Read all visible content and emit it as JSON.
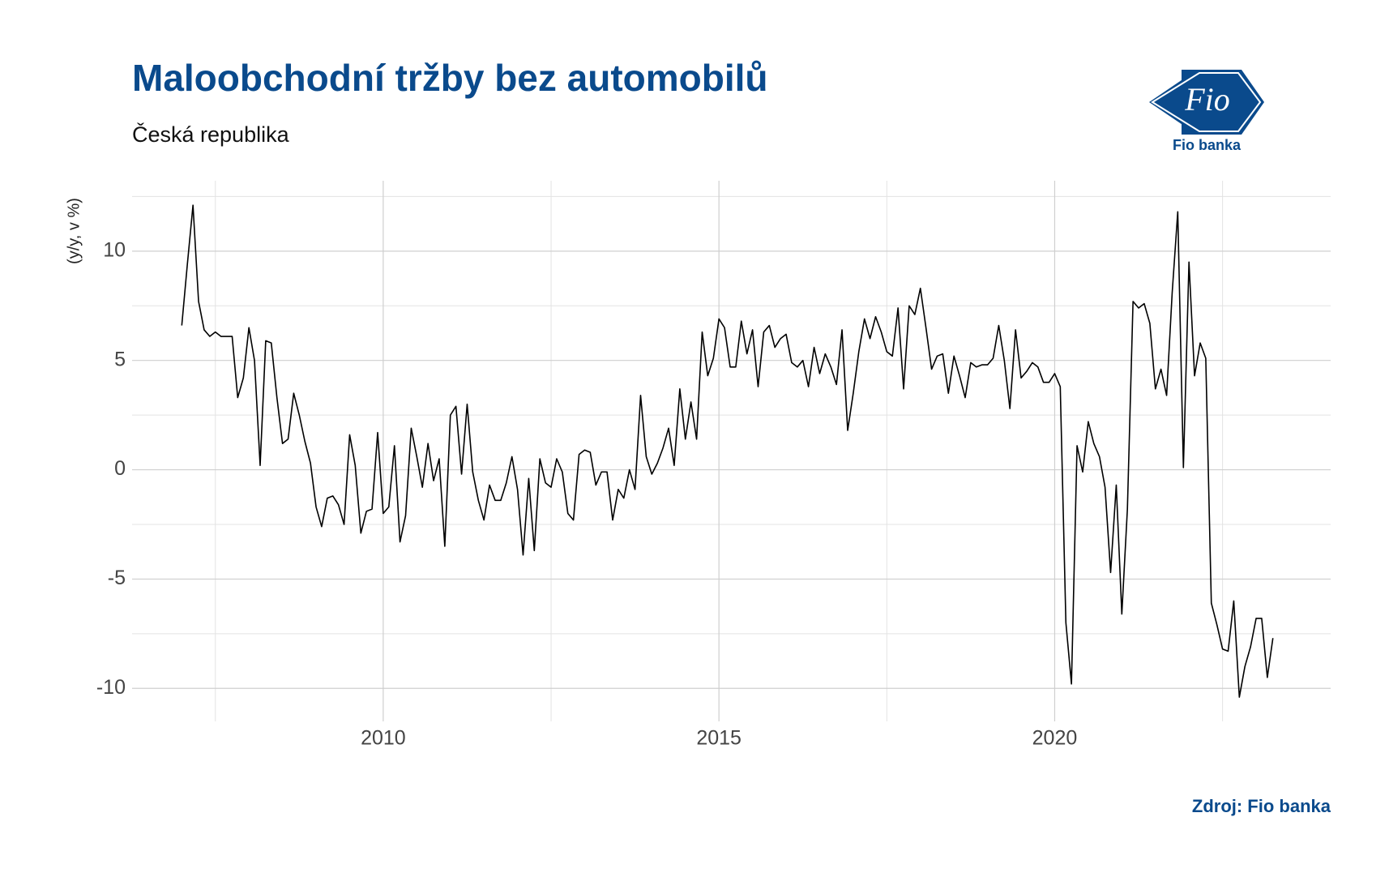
{
  "chart_data": {
    "type": "line",
    "title": "Maloobchodní tržby bez automobilů",
    "subtitle": "Česká republika",
    "y_label": "(y/y, v %)",
    "source": "Zdroj: Fio banka",
    "color": "#000000",
    "grid": true,
    "xlim": [
      2006.26,
      2024.11
    ],
    "xticks": [
      2010,
      2015,
      2020
    ],
    "xminor": [
      2007.5,
      2012.5,
      2017.5,
      2022.5
    ],
    "ylim": [
      -11.51,
      13.22
    ],
    "yticks": [
      -10,
      -5,
      0,
      5,
      10
    ],
    "yminor": [
      -7.5,
      -2.5,
      2.5,
      7.5,
      12.5
    ],
    "x": [
      2007,
      2007.083,
      2007.167,
      2007.25,
      2007.333,
      2007.417,
      2007.5,
      2007.583,
      2007.667,
      2007.75,
      2007.833,
      2007.917,
      2008,
      2008.083,
      2008.167,
      2008.25,
      2008.333,
      2008.417,
      2008.5,
      2008.583,
      2008.667,
      2008.75,
      2008.833,
      2008.917,
      2009,
      2009.083,
      2009.167,
      2009.25,
      2009.333,
      2009.417,
      2009.5,
      2009.583,
      2009.667,
      2009.75,
      2009.833,
      2009.917,
      2010,
      2010.083,
      2010.167,
      2010.25,
      2010.333,
      2010.417,
      2010.5,
      2010.583,
      2010.667,
      2010.75,
      2010.833,
      2010.917,
      2011,
      2011.083,
      2011.167,
      2011.25,
      2011.333,
      2011.417,
      2011.5,
      2011.583,
      2011.667,
      2011.75,
      2011.833,
      2011.917,
      2012,
      2012.083,
      2012.167,
      2012.25,
      2012.333,
      2012.417,
      2012.5,
      2012.583,
      2012.667,
      2012.75,
      2012.833,
      2012.917,
      2013,
      2013.083,
      2013.167,
      2013.25,
      2013.333,
      2013.417,
      2013.5,
      2013.583,
      2013.667,
      2013.75,
      2013.833,
      2013.917,
      2014,
      2014.083,
      2014.167,
      2014.25,
      2014.333,
      2014.417,
      2014.5,
      2014.583,
      2014.667,
      2014.75,
      2014.833,
      2014.917,
      2015,
      2015.083,
      2015.167,
      2015.25,
      2015.333,
      2015.417,
      2015.5,
      2015.583,
      2015.667,
      2015.75,
      2015.833,
      2015.917,
      2016,
      2016.083,
      2016.167,
      2016.25,
      2016.333,
      2016.417,
      2016.5,
      2016.583,
      2016.667,
      2016.75,
      2016.833,
      2016.917,
      2017,
      2017.083,
      2017.167,
      2017.25,
      2017.333,
      2017.417,
      2017.5,
      2017.583,
      2017.667,
      2017.75,
      2017.833,
      2017.917,
      2018,
      2018.083,
      2018.167,
      2018.25,
      2018.333,
      2018.417,
      2018.5,
      2018.583,
      2018.667,
      2018.75,
      2018.833,
      2018.917,
      2019,
      2019.083,
      2019.167,
      2019.25,
      2019.333,
      2019.417,
      2019.5,
      2019.583,
      2019.667,
      2019.75,
      2019.833,
      2019.917,
      2020,
      2020.083,
      2020.167,
      2020.25,
      2020.333,
      2020.417,
      2020.5,
      2020.583,
      2020.667,
      2020.75,
      2020.833,
      2020.917,
      2021,
      2021.083,
      2021.167,
      2021.25,
      2021.333,
      2021.417,
      2021.5,
      2021.583,
      2021.667,
      2021.75,
      2021.833,
      2021.917,
      2022,
      2022.083,
      2022.167,
      2022.25,
      2022.333,
      2022.417,
      2022.5,
      2022.583,
      2022.667,
      2022.75,
      2022.833,
      2022.917,
      2023,
      2023.083,
      2023.167,
      2023.25
    ],
    "values": [
      6.6,
      9.4,
      12.1,
      7.7,
      6.4,
      6.1,
      6.3,
      6.1,
      6.1,
      6.1,
      3.3,
      4.2,
      6.5,
      5.0,
      0.2,
      5.9,
      5.8,
      3.3,
      1.2,
      1.4,
      3.5,
      2.5,
      1.3,
      0.3,
      -1.7,
      -2.6,
      -1.3,
      -1.2,
      -1.6,
      -2.5,
      1.6,
      0.2,
      -2.9,
      -1.9,
      -1.8,
      1.7,
      -2.0,
      -1.7,
      1.1,
      -3.3,
      -2.1,
      1.9,
      0.6,
      -0.8,
      1.2,
      -0.5,
      0.5,
      -3.5,
      2.5,
      2.9,
      -0.2,
      3.0,
      -0.1,
      -1.4,
      -2.3,
      -0.7,
      -1.4,
      -1.4,
      -0.6,
      0.6,
      -0.9,
      -3.9,
      -0.4,
      -3.7,
      0.5,
      -0.6,
      -0.8,
      0.5,
      -0.1,
      -2.0,
      -2.3,
      0.7,
      0.9,
      0.8,
      -0.7,
      -0.1,
      -0.1,
      -2.3,
      -0.9,
      -1.3,
      0.0,
      -0.9,
      3.4,
      0.6,
      -0.2,
      0.3,
      1.0,
      1.9,
      0.2,
      3.7,
      1.4,
      3.1,
      1.4,
      6.3,
      4.3,
      5.1,
      6.9,
      6.5,
      4.7,
      4.7,
      6.8,
      5.3,
      6.4,
      3.8,
      6.3,
      6.6,
      5.6,
      6.0,
      6.2,
      4.9,
      4.7,
      5.0,
      3.8,
      5.6,
      4.4,
      5.3,
      4.7,
      3.9,
      6.4,
      1.8,
      3.5,
      5.4,
      6.9,
      6.0,
      7.0,
      6.3,
      5.4,
      5.2,
      7.4,
      3.7,
      7.5,
      7.1,
      8.3,
      6.5,
      4.6,
      5.2,
      5.3,
      3.5,
      5.2,
      4.3,
      3.3,
      4.9,
      4.7,
      4.8,
      4.8,
      5.1,
      6.6,
      5.0,
      2.8,
      6.4,
      4.2,
      4.5,
      4.9,
      4.7,
      4.0,
      4.0,
      4.4,
      3.8,
      -7.0,
      -9.8,
      1.1,
      -0.1,
      2.2,
      1.2,
      0.6,
      -0.8,
      -4.7,
      -0.7,
      -6.6,
      -1.8,
      7.7,
      7.4,
      7.6,
      6.7,
      3.7,
      4.6,
      3.4,
      8.1,
      11.8,
      0.1,
      9.5,
      4.3,
      5.8,
      5.1,
      -6.1,
      -7.1,
      -8.2,
      -8.3,
      -6.0,
      -10.4,
      -9.0,
      -8.1,
      -6.8,
      -6.8,
      -9.5,
      -7.7
    ]
  },
  "logo": {
    "text": "Fio",
    "caption": "Fio banka"
  }
}
